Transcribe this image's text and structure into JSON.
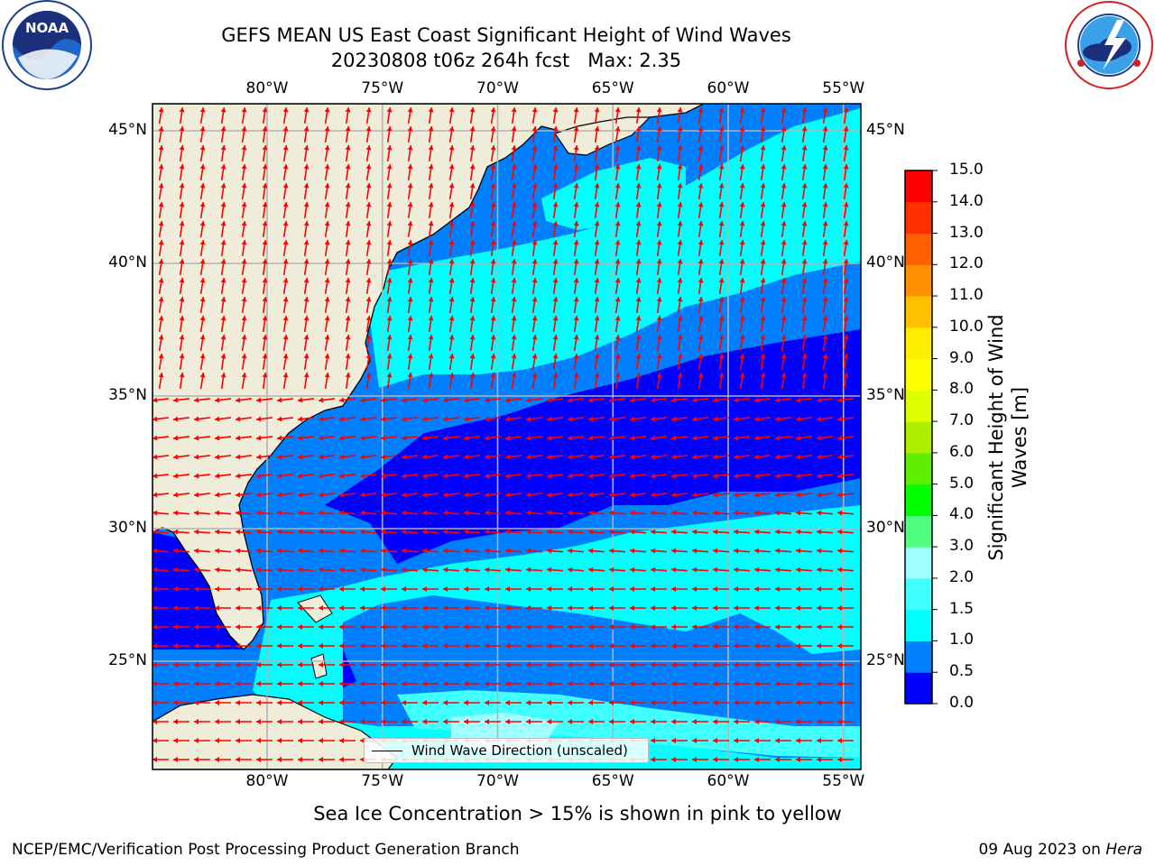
{
  "header": {
    "title_line1": "GEFS MEAN US East Coast Significant Height of Wind Waves",
    "title_line2": "20230808 t06z 264h fcst   Max: 2.35"
  },
  "logos": {
    "noaa": {
      "text": "NOAA",
      "ring_top": "NATIONAL OCEANIC AND ATMOSPHERIC ADMINISTRATION",
      "ring_bottom": "U.S. DEPARTMENT OF COMMERCE"
    },
    "nws": {
      "ring_text": "NATIONAL WEATHER SERVICE"
    }
  },
  "map": {
    "lon_labels": [
      "80°W",
      "75°W",
      "70°W",
      "65°W",
      "60°W",
      "55°W"
    ],
    "lat_labels": [
      "45°N",
      "40°N",
      "35°N",
      "30°N",
      "25°N"
    ],
    "lon_range": [
      -85,
      -54.5
    ],
    "lat_range": [
      21,
      46
    ],
    "grid": true,
    "land_color": "#efedd9",
    "arrow_color": "#ff0000",
    "max_value": 2.35
  },
  "colorbar": {
    "label": "Significant Height of Wind Waves [m]",
    "levels": [
      0.0,
      0.5,
      1.0,
      1.5,
      2.0,
      3.0,
      4.0,
      5.0,
      6.0,
      7.0,
      8.0,
      9.0,
      10.0,
      11.0,
      12.0,
      13.0,
      14.0,
      15.0
    ],
    "tick_labels": [
      "0.0",
      "0.5",
      "1.0",
      "1.5",
      "2.0",
      "3.0",
      "4.0",
      "5.0",
      "6.0",
      "7.0",
      "8.0",
      "9.0",
      "10.0",
      "11.0",
      "12.0",
      "13.0",
      "14.0",
      "15.0"
    ],
    "colors": [
      "#0000ff",
      "#0080ff",
      "#00ffff",
      "#40ffff",
      "#a0ffff",
      "#50ff80",
      "#00ff00",
      "#60ee00",
      "#b0ee00",
      "#ddff00",
      "#ffff00",
      "#ffee00",
      "#ffc000",
      "#ff9000",
      "#ff6000",
      "#ff3000",
      "#ff0000"
    ]
  },
  "legend": {
    "label": "Wind Wave Direction (unscaled)"
  },
  "footer": {
    "caption": "Sea Ice Concentration > 15% is shown in pink to yellow",
    "credit": "NCEP/EMC/Verification Post Processing Product Generation Branch",
    "date": "09 Aug 2023 on",
    "machine": "Hera"
  }
}
